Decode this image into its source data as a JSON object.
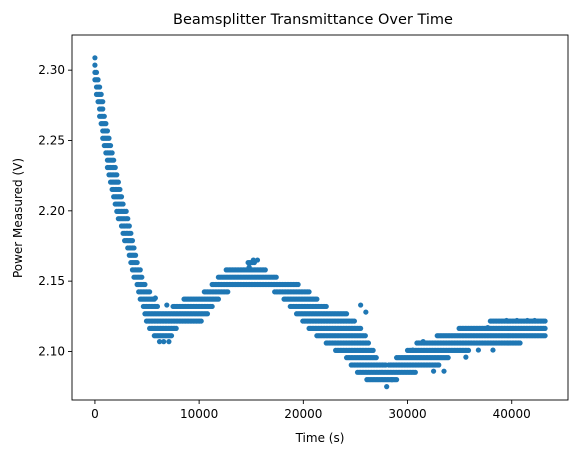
{
  "chart_data": {
    "type": "scatter",
    "title": "Beamsplitter Transmittance Over Time",
    "xlabel": "Time (s)",
    "ylabel": "Power Measured (V)",
    "xlim": [
      -2200,
      45400
    ],
    "ylim": [
      2.0655,
      2.325
    ],
    "x_ticks": [
      0,
      10000,
      20000,
      30000,
      40000
    ],
    "x_tick_labels": [
      "0",
      "10000",
      "20000",
      "30000",
      "40000"
    ],
    "y_ticks": [
      2.1,
      2.15,
      2.2,
      2.25,
      2.3
    ],
    "y_tick_labels": [
      "2.10",
      "2.15",
      "2.20",
      "2.25",
      "2.30"
    ],
    "grid": false,
    "marker_color": "#1f77b4",
    "quantization_step": 0.0052,
    "envelope": {
      "x": [
        0,
        300,
        600,
        1000,
        1500,
        2000,
        2500,
        3000,
        3500,
        4000,
        4500,
        5000,
        5500,
        6000,
        6500,
        7000,
        7500,
        8000,
        8500,
        9000,
        9500,
        10000,
        11000,
        12000,
        13000,
        14000,
        15000,
        16000,
        17000,
        18000,
        19000,
        20000,
        21000,
        22000,
        23000,
        24000,
        25000,
        26000,
        27000,
        28000,
        29000,
        30000,
        31000,
        32000,
        33000,
        34000,
        35000,
        36000,
        37000,
        38000,
        39000,
        40000,
        41000,
        42000,
        43200
      ],
      "low": [
        2.289,
        2.273,
        2.258,
        2.238,
        2.22,
        2.2,
        2.187,
        2.175,
        2.16,
        2.145,
        2.132,
        2.12,
        2.112,
        2.107,
        2.107,
        2.107,
        2.112,
        2.117,
        2.117,
        2.117,
        2.117,
        2.12,
        2.128,
        2.138,
        2.143,
        2.143,
        2.143,
        2.143,
        2.143,
        2.138,
        2.13,
        2.12,
        2.112,
        2.107,
        2.101,
        2.096,
        2.086,
        2.08,
        2.075,
        2.075,
        2.08,
        2.08,
        2.086,
        2.086,
        2.09,
        2.096,
        2.096,
        2.101,
        2.101,
        2.101,
        2.101,
        2.101,
        2.107,
        2.107,
        2.107
      ],
      "high": [
        2.31,
        2.296,
        2.284,
        2.268,
        2.25,
        2.232,
        2.215,
        2.2,
        2.185,
        2.168,
        2.155,
        2.145,
        2.14,
        2.133,
        2.128,
        2.128,
        2.133,
        2.133,
        2.138,
        2.138,
        2.14,
        2.14,
        2.146,
        2.155,
        2.16,
        2.16,
        2.165,
        2.16,
        2.155,
        2.15,
        2.15,
        2.146,
        2.14,
        2.133,
        2.128,
        2.128,
        2.122,
        2.112,
        2.096,
        2.09,
        2.096,
        2.101,
        2.107,
        2.107,
        2.112,
        2.112,
        2.117,
        2.117,
        2.117,
        2.122,
        2.122,
        2.122,
        2.122,
        2.122,
        2.122
      ]
    },
    "outliers": [
      [
        6200,
        2.107
      ],
      [
        6600,
        2.107
      ],
      [
        7100,
        2.107
      ],
      [
        5800,
        2.138
      ],
      [
        6900,
        2.133
      ],
      [
        15200,
        2.165
      ],
      [
        15600,
        2.165
      ],
      [
        14800,
        2.16
      ],
      [
        25500,
        2.133
      ],
      [
        26000,
        2.128
      ],
      [
        28000,
        2.075
      ],
      [
        28500,
        2.08
      ],
      [
        30500,
        2.101
      ],
      [
        31500,
        2.107
      ],
      [
        32500,
        2.086
      ],
      [
        33500,
        2.086
      ],
      [
        35600,
        2.096
      ],
      [
        37700,
        2.117
      ],
      [
        39500,
        2.122
      ],
      [
        40500,
        2.122
      ],
      [
        41500,
        2.122
      ],
      [
        42200,
        2.122
      ],
      [
        36800,
        2.101
      ],
      [
        38200,
        2.101
      ]
    ]
  }
}
